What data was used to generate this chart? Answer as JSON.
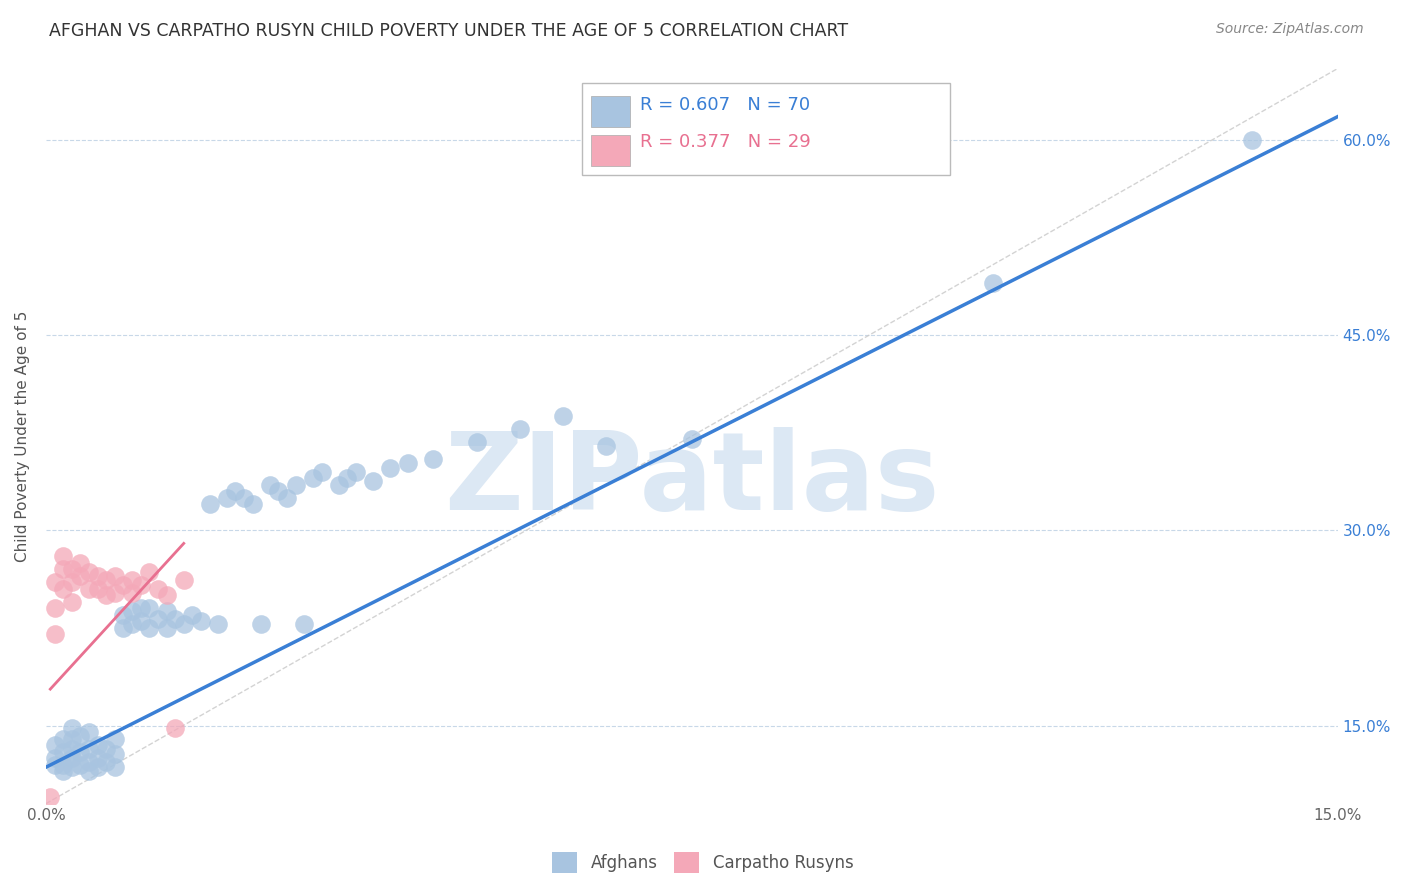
{
  "title": "AFGHAN VS CARPATHO RUSYN CHILD POVERTY UNDER THE AGE OF 5 CORRELATION CHART",
  "source": "Source: ZipAtlas.com",
  "ylabel": "Child Poverty Under the Age of 5",
  "xlim": [
    0.0,
    0.15
  ],
  "ylim": [
    0.09,
    0.655
  ],
  "yticks_right": [
    0.15,
    0.3,
    0.45,
    0.6
  ],
  "ytick_right_labels": [
    "15.0%",
    "30.0%",
    "45.0%",
    "60.0%"
  ],
  "afghan_color": "#a8c4e0",
  "rusyn_color": "#f4a8b8",
  "afghan_line_color": "#3a7fd5",
  "rusyn_line_color": "#e87090",
  "ref_line_color": "#c8c8c8",
  "background_color": "#ffffff",
  "grid_color": "#c8d8e8",
  "watermark_color": "#dce8f4",
  "legend_R_color": "#3a7fd5",
  "legend_N_color": "#e05020",
  "afghan_x": [
    0.001,
    0.001,
    0.001,
    0.002,
    0.002,
    0.002,
    0.002,
    0.003,
    0.003,
    0.003,
    0.003,
    0.003,
    0.004,
    0.004,
    0.004,
    0.005,
    0.005,
    0.005,
    0.005,
    0.006,
    0.006,
    0.006,
    0.007,
    0.007,
    0.008,
    0.008,
    0.008,
    0.009,
    0.009,
    0.01,
    0.01,
    0.011,
    0.011,
    0.012,
    0.012,
    0.013,
    0.014,
    0.014,
    0.015,
    0.016,
    0.017,
    0.018,
    0.019,
    0.02,
    0.021,
    0.022,
    0.023,
    0.024,
    0.025,
    0.026,
    0.027,
    0.028,
    0.029,
    0.03,
    0.031,
    0.032,
    0.034,
    0.035,
    0.036,
    0.038,
    0.04,
    0.042,
    0.045,
    0.05,
    0.055,
    0.06,
    0.065,
    0.075,
    0.11,
    0.14
  ],
  "afghan_y": [
    0.12,
    0.125,
    0.135,
    0.115,
    0.12,
    0.13,
    0.14,
    0.118,
    0.125,
    0.132,
    0.14,
    0.148,
    0.12,
    0.13,
    0.142,
    0.115,
    0.122,
    0.132,
    0.145,
    0.118,
    0.125,
    0.135,
    0.122,
    0.132,
    0.118,
    0.128,
    0.14,
    0.225,
    0.235,
    0.228,
    0.238,
    0.23,
    0.24,
    0.225,
    0.24,
    0.232,
    0.225,
    0.238,
    0.232,
    0.228,
    0.235,
    0.23,
    0.32,
    0.228,
    0.325,
    0.33,
    0.325,
    0.32,
    0.228,
    0.335,
    0.33,
    0.325,
    0.335,
    0.228,
    0.34,
    0.345,
    0.335,
    0.34,
    0.345,
    0.338,
    0.348,
    0.352,
    0.355,
    0.368,
    0.378,
    0.388,
    0.365,
    0.37,
    0.49,
    0.6
  ],
  "rusyn_x": [
    0.0005,
    0.001,
    0.001,
    0.001,
    0.002,
    0.002,
    0.002,
    0.003,
    0.003,
    0.003,
    0.004,
    0.004,
    0.005,
    0.005,
    0.006,
    0.006,
    0.007,
    0.007,
    0.008,
    0.008,
    0.009,
    0.01,
    0.01,
    0.011,
    0.012,
    0.013,
    0.014,
    0.015,
    0.016
  ],
  "rusyn_y": [
    0.095,
    0.22,
    0.24,
    0.26,
    0.255,
    0.27,
    0.28,
    0.245,
    0.26,
    0.27,
    0.265,
    0.275,
    0.255,
    0.268,
    0.255,
    0.265,
    0.25,
    0.262,
    0.252,
    0.265,
    0.258,
    0.252,
    0.262,
    0.258,
    0.268,
    0.255,
    0.25,
    0.148,
    0.262
  ],
  "afghan_line_x": [
    0.0,
    0.15
  ],
  "afghan_line_y": [
    0.118,
    0.618
  ],
  "rusyn_line_x": [
    0.0005,
    0.016
  ],
  "rusyn_line_y": [
    0.178,
    0.29
  ],
  "ref_line_x": [
    0.0,
    0.15
  ],
  "ref_line_y": [
    0.09,
    0.655
  ]
}
